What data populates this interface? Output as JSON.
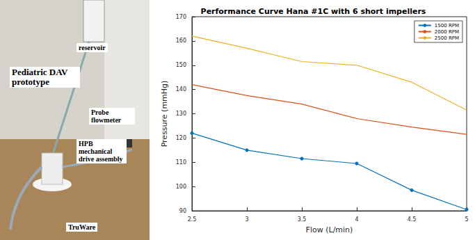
{
  "photo": {
    "labels": [
      "reservoir",
      "Pediatric DAV prototype",
      "Probe flowmeter",
      "HPB mechanical drive assembly",
      "TruWare"
    ]
  },
  "chart_data": {
    "type": "line",
    "title": "Performance Curve Hana #1C with 6 short impellers",
    "x_label": "Flow (L/min)",
    "y_label": "Pressure (mmHg)",
    "x": [
      2.5,
      3,
      3.5,
      4,
      4.5,
      5
    ],
    "series": [
      {
        "name": "1500 RPM",
        "color": "#0072bd",
        "marker": "circle",
        "values": [
          122,
          115,
          111.5,
          109.5,
          98.5,
          90.5
        ]
      },
      {
        "name": "2000 RPM",
        "color": "#d95319",
        "marker": "none",
        "values": [
          142,
          137.5,
          134,
          128,
          124.5,
          121.5
        ]
      },
      {
        "name": "2500 RPM",
        "color": "#edb120",
        "marker": "none",
        "values": [
          162,
          157,
          151.5,
          150,
          143,
          131.5
        ]
      }
    ],
    "xlim": [
      2.5,
      5
    ],
    "xticks": [
      2.5,
      3,
      3.5,
      4,
      4.5,
      5
    ],
    "ylim": [
      90,
      170
    ],
    "yticks": [
      90,
      100,
      110,
      120,
      130,
      140,
      150,
      160,
      170
    ],
    "grid": false,
    "legend": "upper right"
  }
}
